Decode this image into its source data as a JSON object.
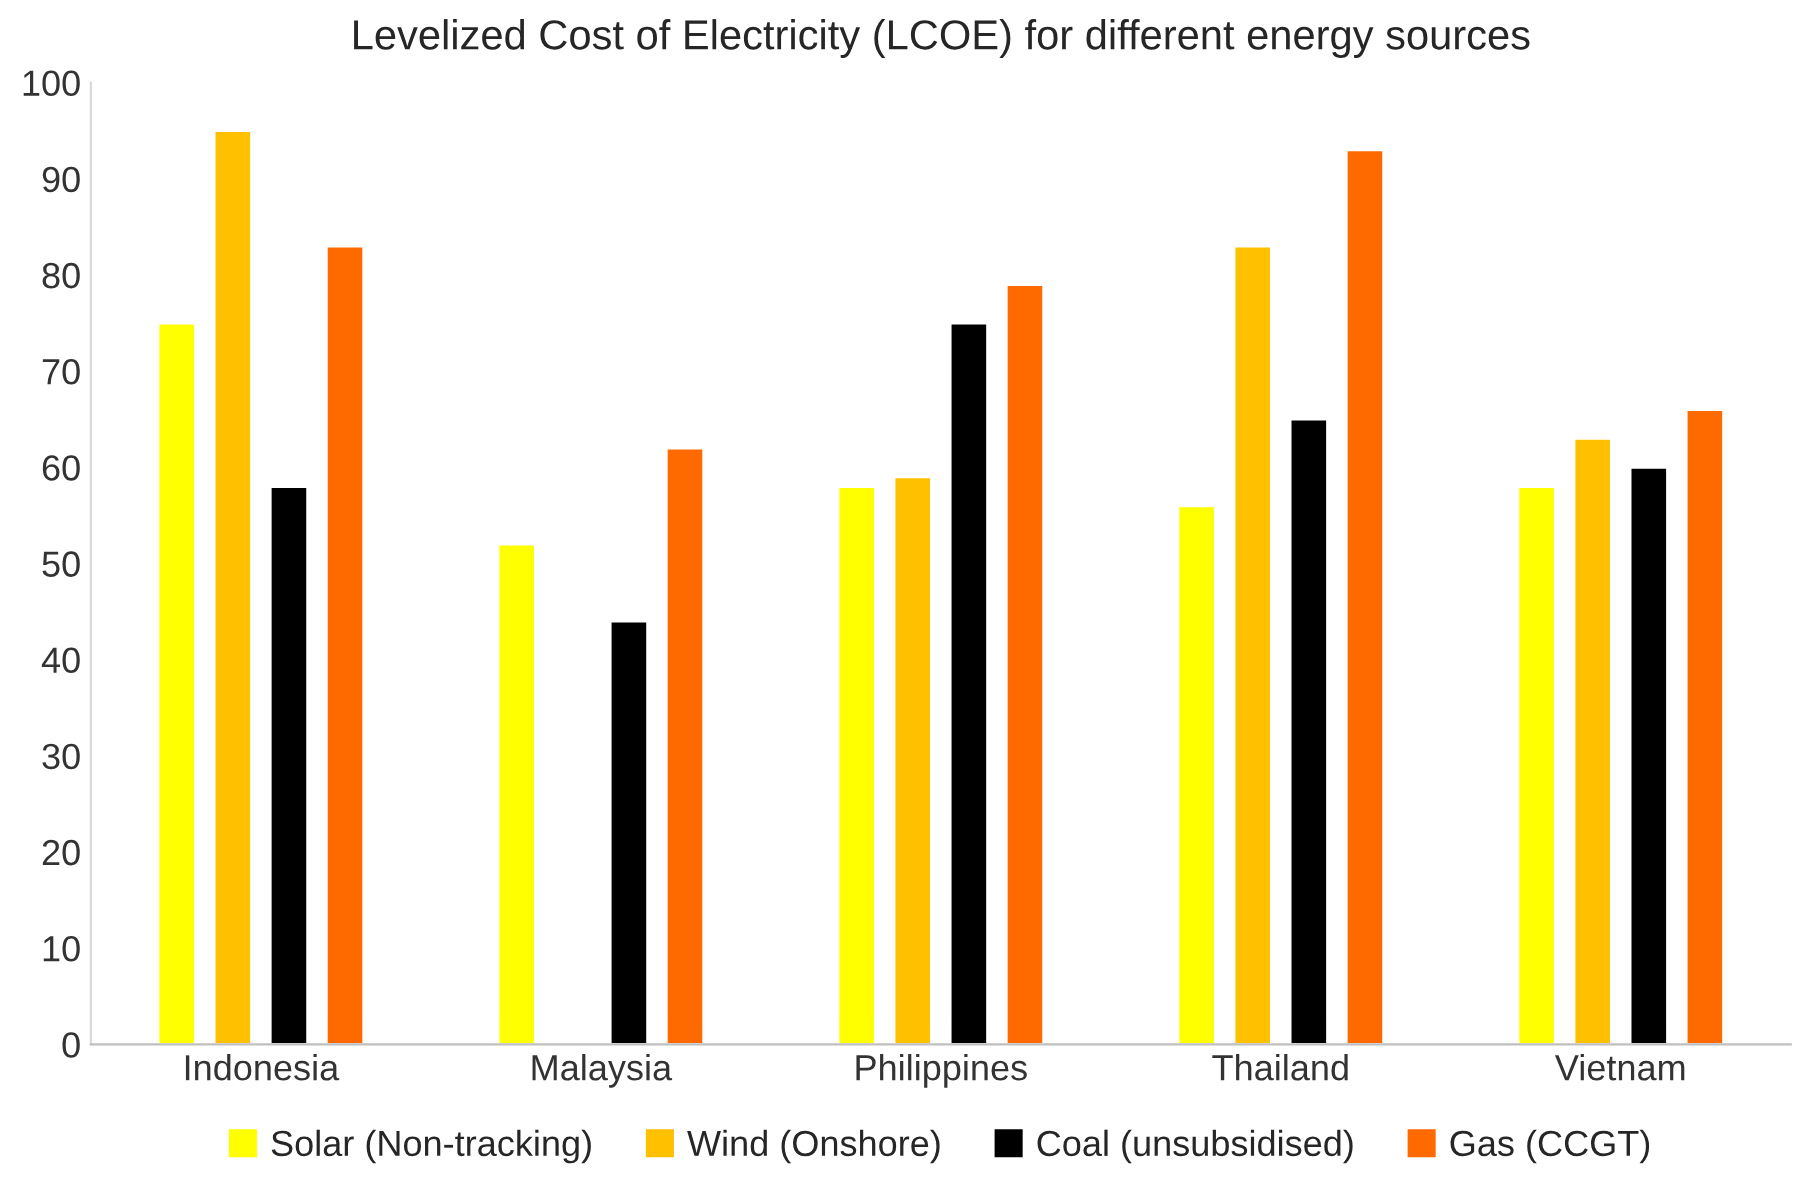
{
  "chart_data": {
    "type": "bar",
    "title": "Levelized Cost of Electricity (LCOE) for different energy sources",
    "categories": [
      "Indonesia",
      "Malaysia",
      "Philippines",
      "Thailand",
      "Vietnam"
    ],
    "series": [
      {
        "name": "Solar (Non-tracking)",
        "color": "#ffff00",
        "values": [
          75,
          52,
          58,
          56,
          58
        ]
      },
      {
        "name": "Wind (Onshore)",
        "color": "#ffc000",
        "values": [
          95,
          null,
          59,
          83,
          63
        ]
      },
      {
        "name": "Coal (unsubsidised)",
        "color": "#000000",
        "values": [
          58,
          44,
          75,
          65,
          60
        ]
      },
      {
        "name": "Gas (CCGT)",
        "color": "#ff6a00",
        "values": [
          83,
          62,
          79,
          93,
          66
        ]
      }
    ],
    "ylim": [
      0,
      100
    ],
    "yticks": [
      0,
      10,
      20,
      30,
      40,
      50,
      60,
      70,
      80,
      90,
      100
    ],
    "grid": false,
    "legend": "bottom"
  }
}
